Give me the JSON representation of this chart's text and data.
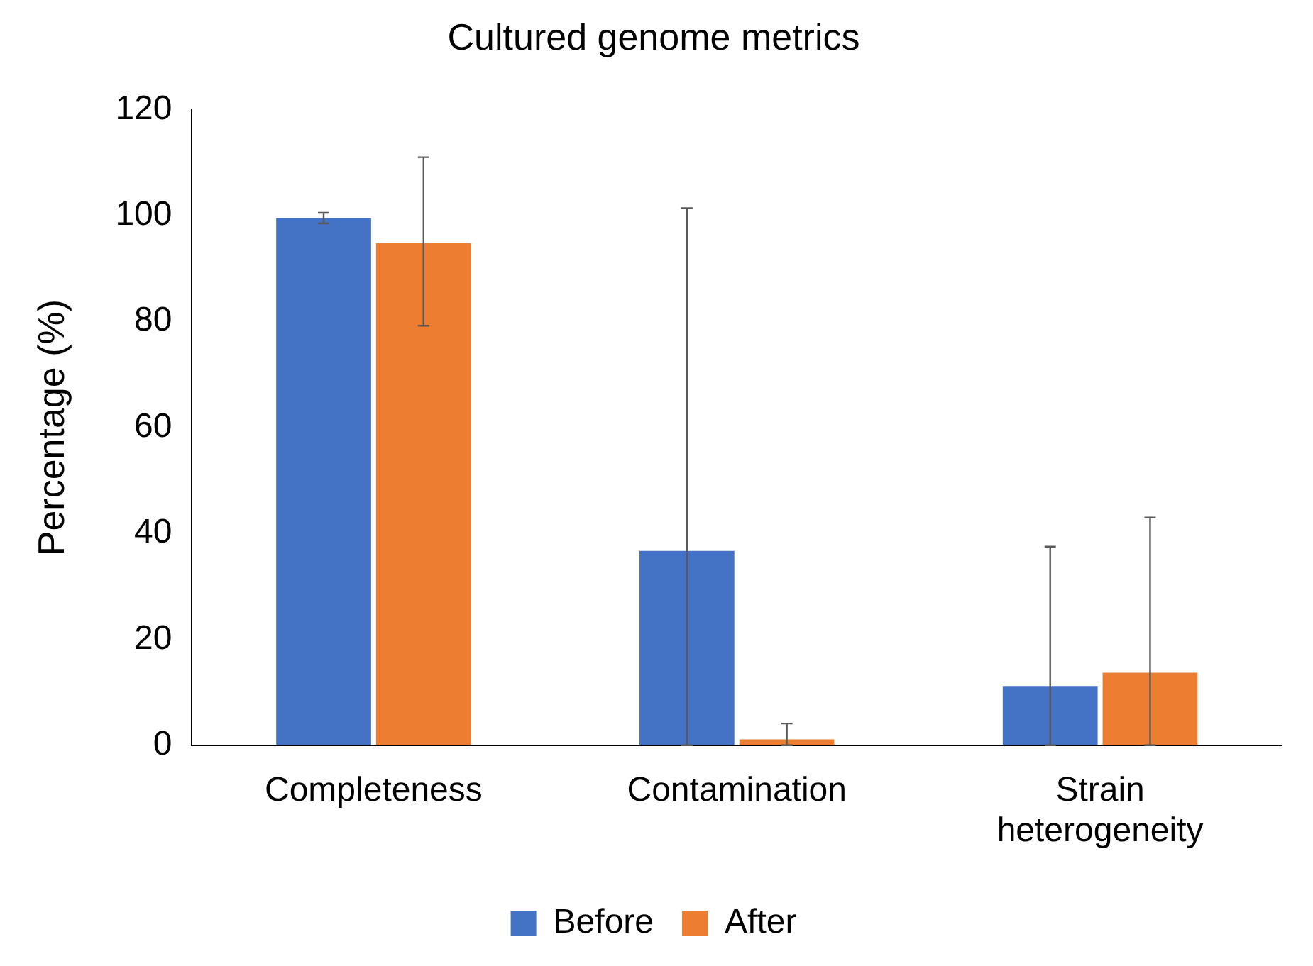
{
  "chart_data": {
    "type": "bar",
    "title": "Cultured genome metrics",
    "ylabel": "Percentage (%)",
    "categories": [
      "Completeness",
      "Contamination",
      "Strain heterogeneity"
    ],
    "series": [
      {
        "name": "Before",
        "color": "#4472c4",
        "values": [
          99.5,
          36.7,
          11.2
        ],
        "errors": [
          [
            98.5,
            100.5
          ],
          [
            0,
            101.4
          ],
          [
            0,
            37.5
          ]
        ]
      },
      {
        "name": "After",
        "color": "#ed7d31",
        "values": [
          94.8,
          1.1,
          13.7
        ],
        "errors": [
          [
            79.2,
            111
          ],
          [
            0,
            4.1
          ],
          [
            0,
            43
          ]
        ]
      }
    ],
    "ylim": [
      0,
      120
    ],
    "yticks": [
      0,
      20,
      40,
      60,
      80,
      100,
      120
    ],
    "grid": false,
    "legend": "bottom"
  }
}
